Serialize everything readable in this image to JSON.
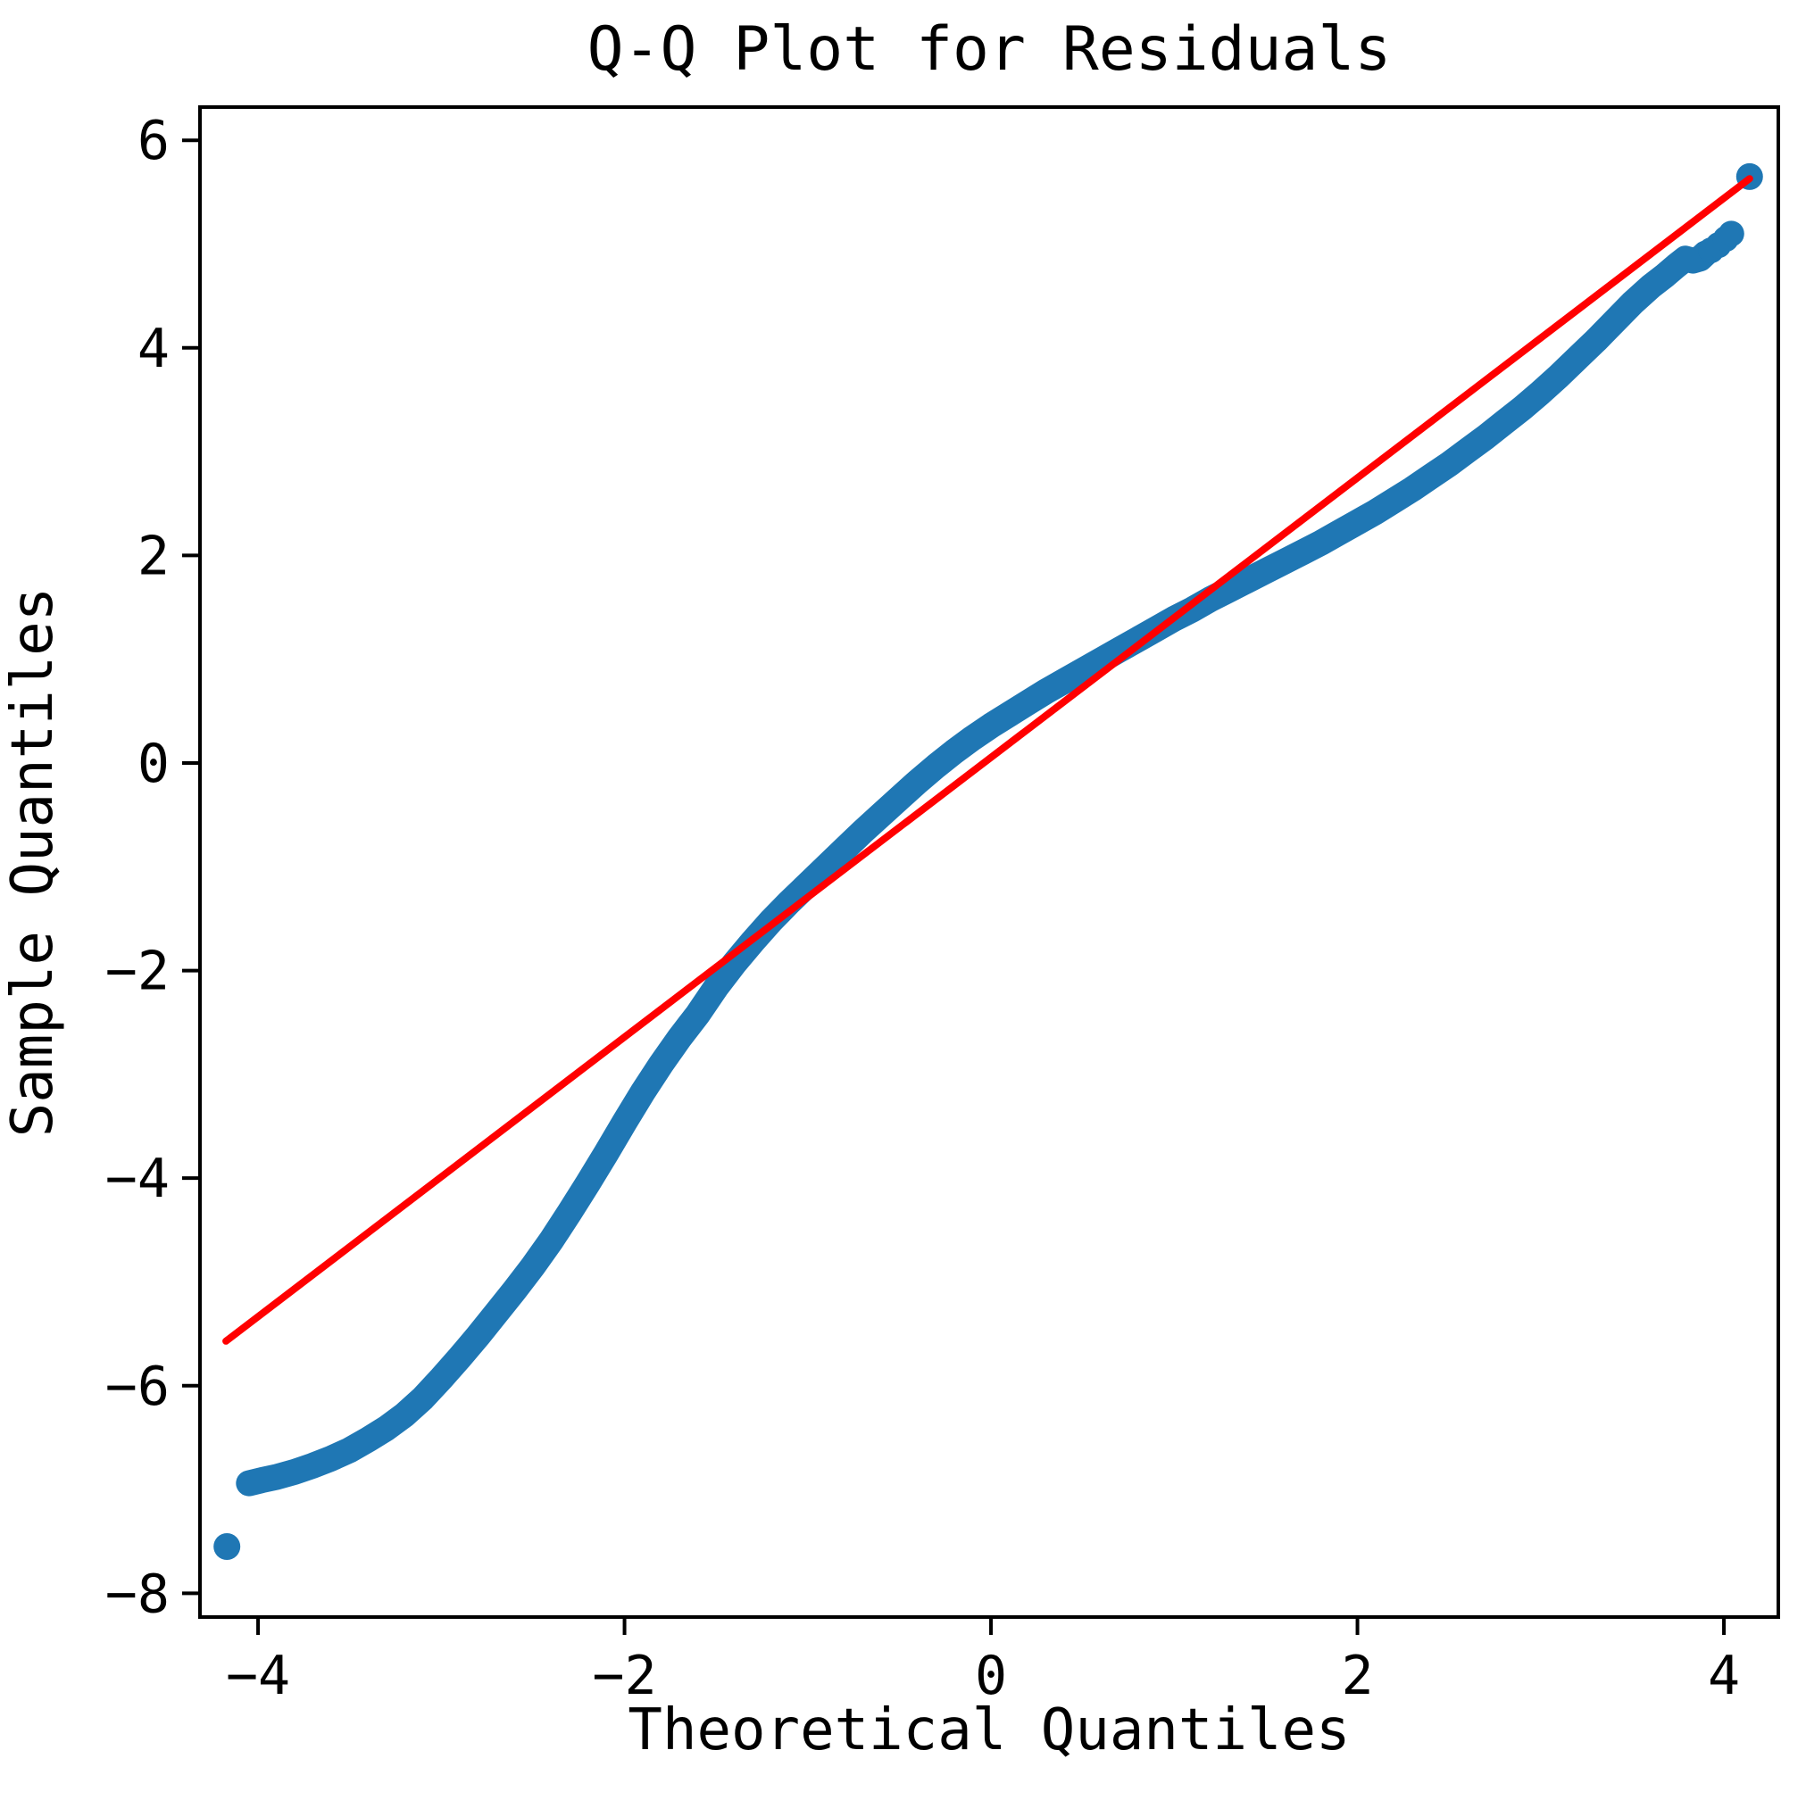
{
  "chart_data": {
    "type": "scatter",
    "title": "Q-Q Plot for Residuals",
    "xlabel": "Theoretical Quantiles",
    "ylabel": "Sample Quantiles",
    "xlim": [
      -4.317,
      4.297
    ],
    "ylim": [
      -8.229,
      6.32
    ],
    "x_ticks": [
      -4,
      -2,
      0,
      2,
      4
    ],
    "y_ticks": [
      -8,
      -6,
      -4,
      -2,
      0,
      2,
      4,
      6
    ],
    "grid": false,
    "legend": null,
    "colors": {
      "scatter": "#1f77b4",
      "reference_line": "#ff0000",
      "axes": "#000000",
      "text": "#000000",
      "background": "#ffffff"
    },
    "series": [
      {
        "name": "sample_vs_theoretical_quantiles",
        "type": "scatter",
        "color": "#1f77b4",
        "band_centerline_points": [
          [
            -4.05,
            -6.94
          ],
          [
            -3.98,
            -6.91
          ],
          [
            -3.9,
            -6.88
          ],
          [
            -3.8,
            -6.83
          ],
          [
            -3.7,
            -6.77
          ],
          [
            -3.6,
            -6.7
          ],
          [
            -3.5,
            -6.62
          ],
          [
            -3.4,
            -6.52
          ],
          [
            -3.3,
            -6.41
          ],
          [
            -3.2,
            -6.28
          ],
          [
            -3.1,
            -6.12
          ],
          [
            -3.0,
            -5.93
          ],
          [
            -2.9,
            -5.73
          ],
          [
            -2.8,
            -5.52
          ],
          [
            -2.7,
            -5.3
          ],
          [
            -2.6,
            -5.08
          ],
          [
            -2.5,
            -4.85
          ],
          [
            -2.4,
            -4.6
          ],
          [
            -2.3,
            -4.33
          ],
          [
            -2.2,
            -4.05
          ],
          [
            -2.1,
            -3.76
          ],
          [
            -2.0,
            -3.46
          ],
          [
            -1.9,
            -3.17
          ],
          [
            -1.8,
            -2.9
          ],
          [
            -1.7,
            -2.65
          ],
          [
            -1.6,
            -2.42
          ],
          [
            -1.5,
            -2.16
          ],
          [
            -1.4,
            -1.93
          ],
          [
            -1.3,
            -1.72
          ],
          [
            -1.2,
            -1.52
          ],
          [
            -1.1,
            -1.34
          ],
          [
            -1.0,
            -1.17
          ],
          [
            -0.9,
            -1.0
          ],
          [
            -0.8,
            -0.83
          ],
          [
            -0.7,
            -0.66
          ],
          [
            -0.6,
            -0.5
          ],
          [
            -0.5,
            -0.34
          ],
          [
            -0.4,
            -0.18
          ],
          [
            -0.3,
            -0.03
          ],
          [
            -0.2,
            0.11
          ],
          [
            -0.1,
            0.24
          ],
          [
            0.0,
            0.36
          ],
          [
            0.1,
            0.47
          ],
          [
            0.2,
            0.58
          ],
          [
            0.3,
            0.69
          ],
          [
            0.4,
            0.79
          ],
          [
            0.5,
            0.89
          ],
          [
            0.6,
            0.99
          ],
          [
            0.7,
            1.09
          ],
          [
            0.8,
            1.19
          ],
          [
            0.9,
            1.29
          ],
          [
            1.0,
            1.39
          ],
          [
            1.1,
            1.48
          ],
          [
            1.2,
            1.58
          ],
          [
            1.3,
            1.67
          ],
          [
            1.4,
            1.76
          ],
          [
            1.5,
            1.85
          ],
          [
            1.6,
            1.94
          ],
          [
            1.7,
            2.03
          ],
          [
            1.8,
            2.12
          ],
          [
            1.9,
            2.22
          ],
          [
            2.0,
            2.32
          ],
          [
            2.1,
            2.42
          ],
          [
            2.2,
            2.53
          ],
          [
            2.3,
            2.64
          ],
          [
            2.4,
            2.76
          ],
          [
            2.5,
            2.88
          ],
          [
            2.6,
            3.01
          ],
          [
            2.7,
            3.14
          ],
          [
            2.8,
            3.28
          ],
          [
            2.9,
            3.42
          ],
          [
            3.0,
            3.57
          ],
          [
            3.1,
            3.73
          ],
          [
            3.2,
            3.9
          ],
          [
            3.3,
            4.07
          ],
          [
            3.4,
            4.25
          ],
          [
            3.5,
            4.43
          ],
          [
            3.6,
            4.59
          ],
          [
            3.68,
            4.7
          ],
          [
            3.74,
            4.79
          ],
          [
            3.79,
            4.86
          ],
          [
            3.83,
            4.84
          ],
          [
            3.87,
            4.86
          ],
          [
            3.9,
            4.91
          ]
        ],
        "upper_tail_cluster_points": [
          [
            3.93,
            4.94
          ],
          [
            3.97,
            4.99
          ],
          [
            4.01,
            5.05
          ],
          [
            4.04,
            5.1
          ]
        ],
        "outlier_points": [
          [
            -4.17,
            -7.55
          ],
          [
            4.14,
            5.65
          ]
        ]
      },
      {
        "name": "reference_line",
        "type": "line",
        "color": "#ff0000",
        "points": [
          [
            -4.175,
            -5.57
          ],
          [
            4.14,
            5.63
          ]
        ]
      }
    ]
  }
}
